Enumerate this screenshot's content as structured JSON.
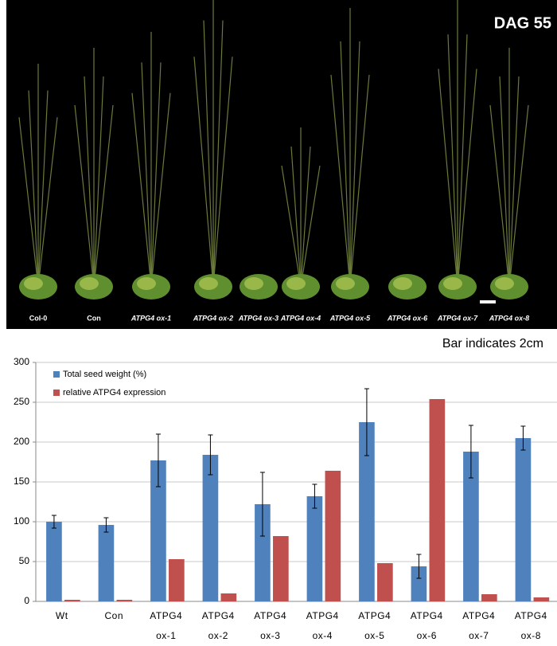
{
  "image_panel": {
    "stage": "DAG 55",
    "labels": [
      "Col-0",
      "Con",
      "ATPG4 ox-1",
      "ATPG4 ox-2",
      "ATPG4 ox-3",
      "ATPG4 ox-4",
      "ATPG4 ox-5",
      "ATPG4 ox-6",
      "ATPG4 ox-7",
      "ATPG4 ox-8"
    ],
    "scale_note": "Bar indicates 2cm"
  },
  "chart_data": {
    "type": "bar",
    "categories": [
      "Wt",
      "Con",
      "ATPG4 ox-1",
      "ATPG4 ox-2",
      "ATPG4 ox-3",
      "ATPG4 ox-4",
      "ATPG4 ox-5",
      "ATPG4 ox-6",
      "ATPG4 ox-7",
      "ATPG4 ox-8"
    ],
    "series": [
      {
        "name": "Total seed weight (%)",
        "color": "#4f81bd",
        "values": [
          100,
          96,
          177,
          184,
          122,
          132,
          225,
          44,
          188,
          205
        ],
        "errors": [
          8,
          9,
          33,
          25,
          40,
          15,
          42,
          15,
          33,
          15
        ]
      },
      {
        "name": "relative ATPG4 expression",
        "color": "#c0504d",
        "values": [
          2,
          2,
          53,
          10,
          82,
          164,
          48,
          254,
          9,
          5
        ]
      }
    ],
    "ylim": [
      0,
      300
    ],
    "yticks": [
      0,
      50,
      100,
      150,
      200,
      250,
      300
    ],
    "grid": true,
    "legend": "upper left"
  }
}
